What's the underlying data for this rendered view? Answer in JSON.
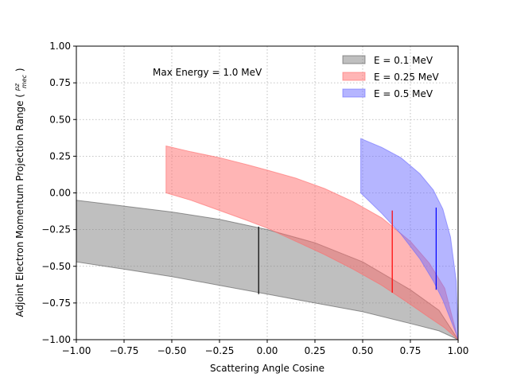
{
  "chart_data": {
    "type": "area",
    "title": "",
    "xlabel": "Scattering Angle Cosine",
    "ylabel": "Adjoint Electron Momentum Projection Range (pz/mec)",
    "ylabel_main": "Adjoint Electron Momentum Projection Range (",
    "ylabel_frac_num": "pz",
    "ylabel_frac_den": "mec",
    "ylabel_close": ")",
    "xlim": [
      -1.0,
      1.0
    ],
    "ylim": [
      -1.0,
      1.0
    ],
    "xticks": [
      -1.0,
      -0.75,
      -0.5,
      -0.25,
      0.0,
      0.25,
      0.5,
      0.75,
      1.0
    ],
    "yticks": [
      -1.0,
      -0.75,
      -0.5,
      -0.25,
      0.0,
      0.25,
      0.5,
      0.75,
      1.0
    ],
    "xtick_labels": [
      "−1.00",
      "−0.75",
      "−0.50",
      "−0.25",
      "0.00",
      "0.25",
      "0.50",
      "0.75",
      "1.00"
    ],
    "ytick_labels": [
      "−1.00",
      "−0.75",
      "−0.50",
      "−0.25",
      "0.00",
      "0.25",
      "0.50",
      "0.75",
      "1.00"
    ],
    "grid": true,
    "legend_position": "top-right",
    "annotation": "Max Energy = 1.0 MeV",
    "series": [
      {
        "name": "E = 0.1 MeV",
        "fill": "#808080",
        "edge": "#555555",
        "line_color": "#000000",
        "x": [
          -1.0,
          -0.75,
          -0.5,
          -0.25,
          0.0,
          0.25,
          0.5,
          0.75,
          0.9,
          1.0
        ],
        "upper": [
          -0.05,
          -0.09,
          -0.13,
          -0.18,
          -0.25,
          -0.34,
          -0.47,
          -0.66,
          -0.8,
          -1.0
        ],
        "lower": [
          -0.47,
          -0.52,
          -0.57,
          -0.63,
          -0.69,
          -0.75,
          -0.81,
          -0.89,
          -0.94,
          -1.0
        ],
        "marker_x": -0.045,
        "marker_range": [
          -0.23,
          -0.69
        ]
      },
      {
        "name": "E = 0.25 MeV",
        "fill": "#ff6b6b",
        "edge": "#ff6b6b",
        "line_color": "#ff0000",
        "x": [
          -0.53,
          -0.4,
          -0.25,
          -0.1,
          0.0,
          0.15,
          0.3,
          0.45,
          0.6,
          0.75,
          0.85,
          0.93,
          1.0
        ],
        "upper": [
          0.32,
          0.28,
          0.24,
          0.19,
          0.155,
          0.1,
          0.03,
          -0.06,
          -0.17,
          -0.33,
          -0.48,
          -0.65,
          -1.0
        ],
        "lower": [
          0.0,
          -0.05,
          -0.12,
          -0.19,
          -0.24,
          -0.33,
          -0.42,
          -0.52,
          -0.63,
          -0.76,
          -0.85,
          -0.92,
          -1.0
        ],
        "marker_x": 0.655,
        "marker_range": [
          -0.12,
          -0.68
        ]
      },
      {
        "name": "E = 0.5 MeV",
        "fill": "#6b6bff",
        "edge": "#6b6bff",
        "line_color": "#0000ff",
        "x": [
          0.49,
          0.6,
          0.7,
          0.8,
          0.87,
          0.92,
          0.96,
          0.99,
          1.0
        ],
        "upper": [
          0.37,
          0.31,
          0.24,
          0.13,
          0.02,
          -0.11,
          -0.3,
          -0.6,
          -1.0
        ],
        "lower": [
          0.0,
          -0.14,
          -0.28,
          -0.45,
          -0.6,
          -0.73,
          -0.86,
          -0.96,
          -1.0
        ],
        "marker_x": 0.885,
        "marker_range": [
          -0.1,
          -0.66
        ]
      }
    ]
  }
}
